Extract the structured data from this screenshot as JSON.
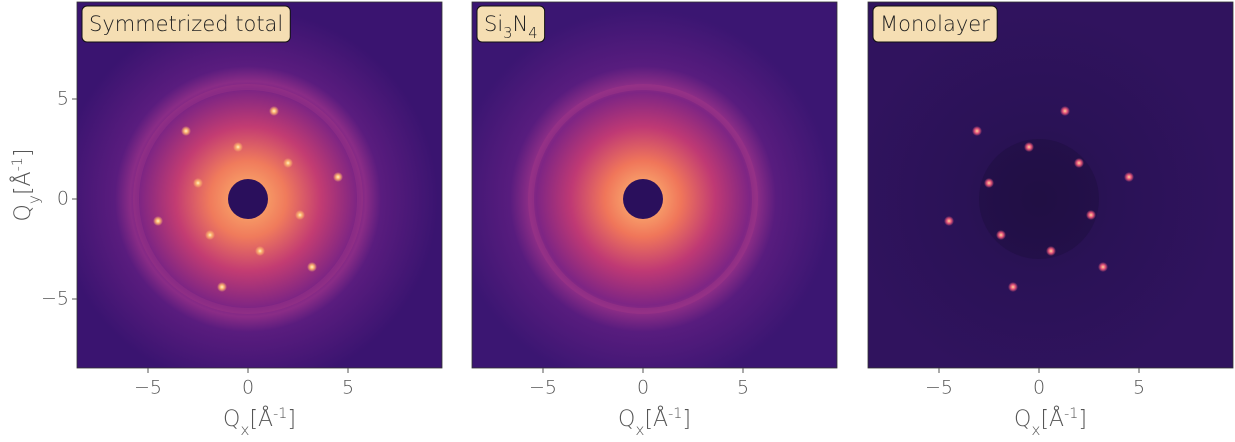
{
  "chart_data": [
    {
      "type": "image",
      "title": [
        {
          "t": "Symmetrized total"
        }
      ],
      "xlabel": [
        {
          "t": "Q"
        },
        {
          "t": "x",
          "sub": true
        },
        {
          "t": "[Å"
        },
        {
          "t": "-1",
          "sup": true
        },
        {
          "t": "]"
        }
      ],
      "ylabel": [
        {
          "t": "Q"
        },
        {
          "t": "y",
          "sub": true
        },
        {
          "t": "[Å"
        },
        {
          "t": "-1",
          "sup": true
        },
        {
          "t": "]"
        }
      ],
      "xlim": [
        -8.55,
        9.7
      ],
      "ylim": [
        -8.45,
        9.85
      ],
      "xticks": [
        {
          "value": -5,
          "label": "−5"
        },
        0,
        5
      ],
      "yticks": [
        {
          "value": -5,
          "label": "−5"
        },
        0,
        5
      ],
      "spots": {
        "x": [
          1.3,
          -3.1,
          -0.5,
          2.0,
          4.5,
          -2.5,
          -4.5,
          2.6,
          -1.9,
          0.6,
          3.2,
          -1.3
        ],
        "y": [
          4.4,
          3.4,
          2.6,
          1.8,
          1.1,
          0.8,
          -1.1,
          -0.8,
          -1.8,
          -2.6,
          -3.4,
          -4.4
        ]
      }
    },
    {
      "type": "image",
      "title": [
        {
          "t": "Si"
        },
        {
          "t": "3",
          "sub": true
        },
        {
          "t": "N"
        },
        {
          "t": "4",
          "sub": true
        }
      ],
      "xlabel": [
        {
          "t": "Q"
        },
        {
          "t": "x",
          "sub": true
        },
        {
          "t": "[Å"
        },
        {
          "t": "-1",
          "sup": true
        },
        {
          "t": "]"
        }
      ],
      "xlim": [
        -8.55,
        9.7
      ],
      "ylim": [
        -8.45,
        9.85
      ],
      "xticks": [
        {
          "value": -5,
          "label": "−5"
        },
        0,
        5
      ]
    },
    {
      "type": "image",
      "title": [
        {
          "t": "Monolayer"
        }
      ],
      "xlabel": [
        {
          "t": "Q"
        },
        {
          "t": "x",
          "sub": true
        },
        {
          "t": "[Å"
        },
        {
          "t": "-1",
          "sup": true
        },
        {
          "t": "]"
        }
      ],
      "xlim": [
        -8.55,
        9.7
      ],
      "ylim": [
        -8.45,
        9.85
      ],
      "xticks": [
        {
          "value": -5,
          "label": "−5"
        },
        0,
        5
      ],
      "spots": {
        "x": [
          1.3,
          -3.1,
          -0.5,
          2.0,
          4.5,
          -2.5,
          -4.5,
          2.6,
          -1.9,
          0.6,
          3.2,
          -1.3
        ],
        "y": [
          4.4,
          3.4,
          2.6,
          1.8,
          1.1,
          0.8,
          -1.1,
          -0.8,
          -1.8,
          -2.6,
          -3.4,
          -4.4
        ]
      }
    }
  ]
}
